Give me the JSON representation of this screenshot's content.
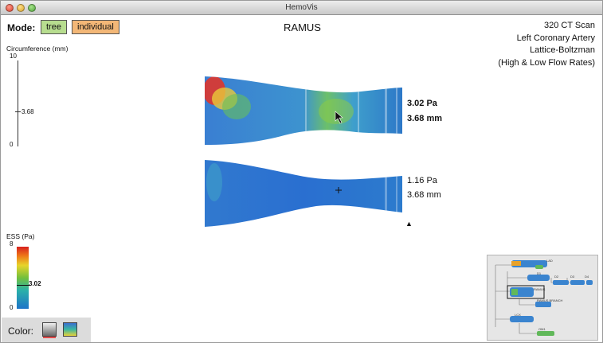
{
  "window": {
    "title": "HemoVis"
  },
  "mode": {
    "label": "Mode:",
    "options": [
      "tree",
      "individual"
    ],
    "selected": "individual"
  },
  "vessel_name": "RAMUS",
  "scan_info": [
    "320 CT Scan",
    "Left Coronary Artery",
    "Lattice-Boltzman",
    "(High & Low Flow Rates)"
  ],
  "circumference": {
    "label": "Circumference (mm)",
    "max": "10",
    "min": "0",
    "current": "3.68",
    "current_value": 3.68,
    "range": [
      0,
      10
    ]
  },
  "ess": {
    "label": "ESS (Pa)",
    "max": "8",
    "min": "0",
    "current": "3.02",
    "current_value": 3.02,
    "range": [
      0,
      8
    ],
    "colormap": [
      "#d8201f",
      "#ee7a18",
      "#e8d42a",
      "#73c03c",
      "#2bb1a9",
      "#1e74c8"
    ]
  },
  "readouts": {
    "top": {
      "stress": "3.02 Pa",
      "circumference": "3.68 mm"
    },
    "bottom": {
      "stress": "1.16 Pa",
      "circumference": "3.68 mm"
    }
  },
  "color_panel": {
    "label": "Color:",
    "options": [
      "grayscale-swatch-icon",
      "color-swatch-icon"
    ]
  },
  "minimap": {
    "labels": [
      "LAD",
      "D1",
      "D2",
      "D3",
      "D4",
      "RAMUS",
      "RAMUS BRANCH",
      "LCX",
      "OM1"
    ]
  }
}
